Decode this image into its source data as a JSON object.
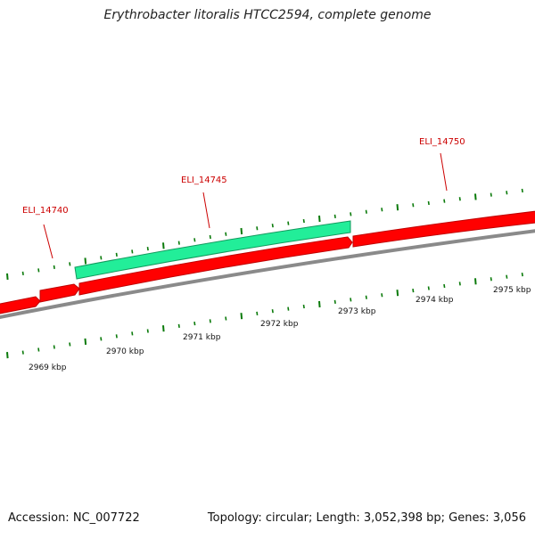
{
  "title": "Erythrobacter litoralis HTCC2594, complete genome",
  "footer": {
    "accession": "Accession: NC_007722",
    "stats": "Topology: circular; Length: 3,052,398 bp; Genes: 3,056"
  },
  "colors": {
    "gene_fwd": "#ff0000",
    "gene_fwd_dark": "#c00000",
    "gene_rev": "#22ee99",
    "gene_rev_dark": "#139a5e",
    "backbone": "#8a8a8a",
    "tick": "#0a7a0a",
    "label": "#cc0000"
  },
  "gene_labels": [
    "ELI_14740",
    "ELI_14745",
    "ELI_14750"
  ],
  "kbp_labels": [
    "2969 kbp",
    "2970 kbp",
    "2971 kbp",
    "2972 kbp",
    "2973 kbp",
    "2974 kbp",
    "2975 kbp"
  ]
}
